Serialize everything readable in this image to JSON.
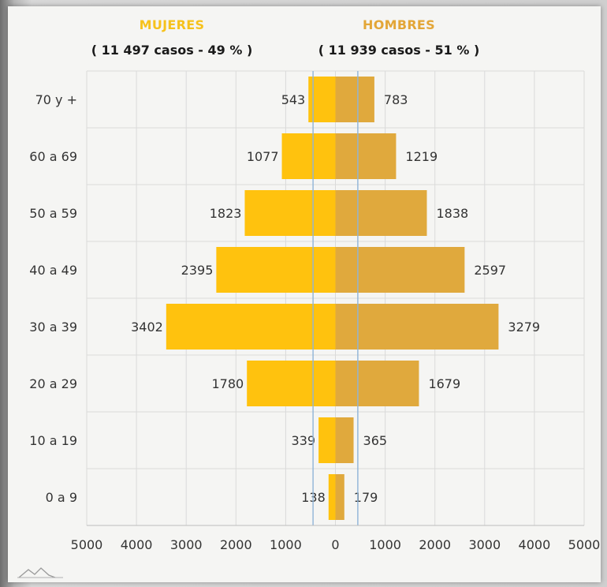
{
  "colors": {
    "mujeres": "#ffc20e",
    "hombres": "#e0a93d",
    "grid": "#dadada",
    "ref_line": "#8fb4d8",
    "header_mujeres": "#f6c21c",
    "header_hombres": "#e3a637"
  },
  "header": {
    "mujeres_label": "MUJERES",
    "mujeres_count": "( 11 497 casos - 49 % )",
    "hombres_label": "HOMBRES",
    "hombres_count": "( 11 939 casos - 51 % )"
  },
  "chart_data": {
    "type": "bar",
    "orientation": "horizontal-pyramid",
    "categories": [
      "70 y +",
      "60 a 69",
      "50 a 59",
      "40 a 49",
      "30 a 39",
      "20 a 29",
      "10 a 19",
      "0 a 9"
    ],
    "series": [
      {
        "name": "MUJERES",
        "side": "left",
        "values": [
          543,
          1077,
          1823,
          2395,
          3402,
          1780,
          339,
          138
        ]
      },
      {
        "name": "HOMBRES",
        "side": "right",
        "values": [
          783,
          1219,
          1838,
          2597,
          3279,
          1679,
          365,
          179
        ]
      }
    ],
    "x_ticks": [
      -5000,
      -4000,
      -3000,
      -2000,
      -1000,
      0,
      1000,
      2000,
      3000,
      4000,
      5000
    ],
    "x_tick_labels": [
      "5000",
      "4000",
      "3000",
      "2000",
      "1000",
      "0",
      "1000",
      "2000",
      "3000",
      "4000",
      "5000"
    ],
    "xlim": [
      -5000,
      5000
    ],
    "reference_lines": [
      -450,
      450
    ],
    "grid": true,
    "xlabel": "",
    "ylabel": ""
  }
}
